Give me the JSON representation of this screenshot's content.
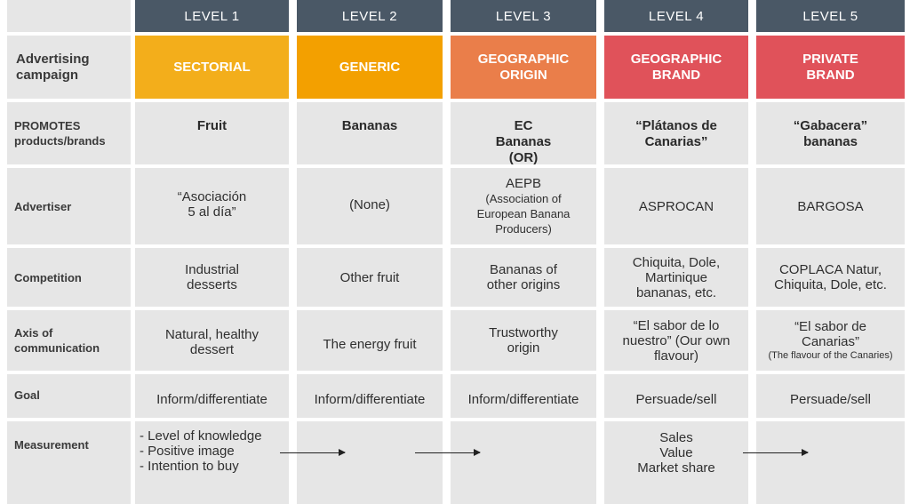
{
  "levels": [
    "LEVEL 1",
    "LEVEL 2",
    "LEVEL 3",
    "LEVEL 4",
    "LEVEL 5"
  ],
  "rows": {
    "campaign_label": "Advertising campaign",
    "promotes_label": "PROMOTES products/brands",
    "advertiser_label": "Advertiser",
    "competition_label": "Competition",
    "axis_label": "Axis of communication",
    "goal_label": "Goal",
    "measurement_label": "Measurement"
  },
  "campaign": [
    "SECTORIAL",
    "GENERIC",
    "GEOGRAPHIC ORIGIN",
    "GEOGRAPHIC BRAND",
    "PRIVATE BRAND"
  ],
  "campaign_colors": [
    "#f3ae1b",
    "#f3a000",
    "#ea7e4a",
    "#e0525a",
    "#e0525a"
  ],
  "promotes": [
    "Fruit",
    "Bananas",
    "EC Bananas (OR)",
    "“Plátanos de Canarias”",
    "“Gabacera” bananas"
  ],
  "advertiser": {
    "l1": "“Asociación 5 al día”",
    "l2": "(None)",
    "l3_name": "AEPB",
    "l3_detail": "(Association of European Banana Producers)",
    "l4": "ASPROCAN",
    "l5": "BARGOSA"
  },
  "competition": [
    "Industrial desserts",
    "Other fruit",
    "Bananas of other origins",
    "Chiquita, Dole, Martinique bananas, etc.",
    "COPLACA Natur, Chiquita, Dole, etc."
  ],
  "axis": {
    "l1": "Natural, healthy dessert",
    "l2": "The energy fruit",
    "l3": "Trustworthy origin",
    "l4": "“El sabor de lo nuestro” (Our own flavour)",
    "l5_main": "“El sabor de Canarias”",
    "l5_note": "(The flavour of the Canaries)"
  },
  "goal": [
    "Inform/differentiate",
    "Inform/differentiate",
    "Inform/differentiate",
    "Persuade/sell",
    "Persuade/sell"
  ],
  "measurement": {
    "left": [
      "- Level of knowledge",
      "- Positive image",
      "- Intention to buy"
    ],
    "right": [
      "Sales",
      "Value",
      "Market share"
    ]
  }
}
